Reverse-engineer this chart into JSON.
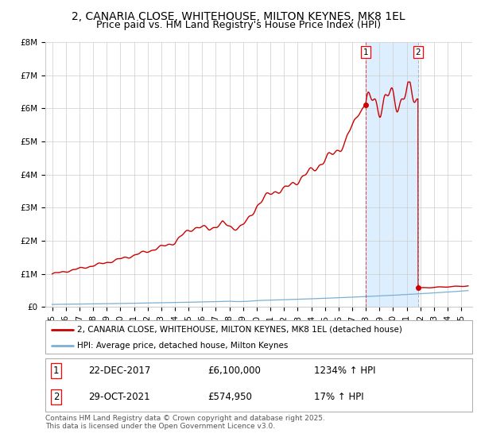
{
  "title_line1": "2, CANARIA CLOSE, WHITEHOUSE, MILTON KEYNES, MK8 1EL",
  "title_line2": "Price paid vs. HM Land Registry's House Price Index (HPI)",
  "ylabel_ticks": [
    "£0",
    "£1M",
    "£2M",
    "£3M",
    "£4M",
    "£5M",
    "£6M",
    "£7M",
    "£8M"
  ],
  "ylim": [
    0,
    8000000
  ],
  "xlim_start": 1994.5,
  "xlim_end": 2025.8,
  "event1_x": 2017.97,
  "event1_y": 6100000,
  "event1_label": "1",
  "event2_x": 2021.83,
  "event2_y": 574950,
  "event2_label": "2",
  "highlight_start": 2017.97,
  "highlight_end": 2021.83,
  "hpi_color": "#7bafd4",
  "price_color": "#cc0000",
  "background_color": "#ffffff",
  "grid_color": "#cccccc",
  "highlight_color": "#ddeeff",
  "legend_label1": "2, CANARIA CLOSE, WHITEHOUSE, MILTON KEYNES, MK8 1EL (detached house)",
  "legend_label2": "HPI: Average price, detached house, Milton Keynes",
  "annotation1_date": "22-DEC-2017",
  "annotation1_price": "£6,100,000",
  "annotation1_hpi": "1234% ↑ HPI",
  "annotation2_date": "29-OCT-2021",
  "annotation2_price": "£574,950",
  "annotation2_hpi": "17% ↑ HPI",
  "footer": "Contains HM Land Registry data © Crown copyright and database right 2025.\nThis data is licensed under the Open Government Licence v3.0.",
  "title_fontsize": 10,
  "subtitle_fontsize": 9,
  "tick_fontsize": 7.5,
  "legend_fontsize": 7.5,
  "annotation_fontsize": 8.5,
  "footer_fontsize": 6.5
}
